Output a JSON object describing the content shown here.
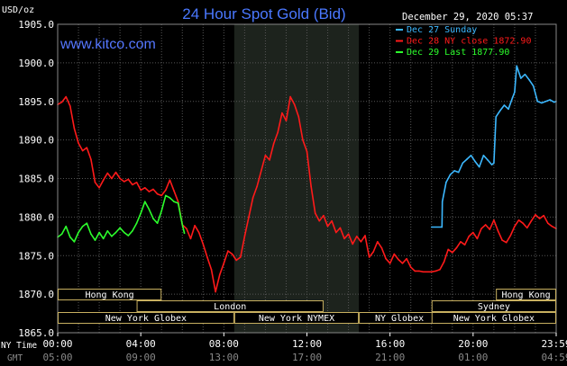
{
  "chart_data": {
    "type": "line",
    "title": "24 Hour Spot Gold (Bid)",
    "website": "www.kitco.com",
    "ylabel": "USD/oz",
    "timestamp": "December 29, 2020 05:37",
    "ylim": [
      1865.0,
      1905.0
    ],
    "yticks": [
      "1905.0",
      "1900.0",
      "1895.0",
      "1890.0",
      "1885.0",
      "1880.0",
      "1875.0",
      "1870.0",
      "1865.0"
    ],
    "xlim": [
      0,
      24
    ],
    "xticks": [
      {
        "x": 0,
        "ny": "00:00",
        "gmt": "05:00"
      },
      {
        "x": 4,
        "ny": "04:00",
        "gmt": "09:00"
      },
      {
        "x": 8,
        "ny": "08:00",
        "gmt": "13:00"
      },
      {
        "x": 12,
        "ny": "12:00",
        "gmt": "17:00"
      },
      {
        "x": 16,
        "ny": "16:00",
        "gmt": "21:00"
      },
      {
        "x": 20,
        "ny": "20:00",
        "gmt": "01:00"
      },
      {
        "x": 24,
        "ny": "23:59",
        "gmt": "04:59"
      }
    ],
    "xaxis_labels": {
      "ny": "NY Time",
      "gmt": "GMT"
    },
    "shaded_hours": [
      8.5,
      14.5
    ],
    "grid": true,
    "legend_position": "top-right",
    "legend": [
      {
        "label": "Dec 27 Sunday",
        "color": "#3cb8ff"
      },
      {
        "label": "Dec 28 NY close 1872.90",
        "color": "#ff1a1a"
      },
      {
        "label": "Dec 29 Last 1877.90",
        "color": "#2cff2c"
      }
    ],
    "series": [
      {
        "name": "Dec 28",
        "color": "#ff1a1a",
        "points": [
          [
            0.0,
            1894.6
          ],
          [
            0.2,
            1894.9
          ],
          [
            0.4,
            1895.6
          ],
          [
            0.6,
            1894.4
          ],
          [
            0.8,
            1891.5
          ],
          [
            1.0,
            1889.6
          ],
          [
            1.2,
            1888.6
          ],
          [
            1.4,
            1889.0
          ],
          [
            1.6,
            1887.5
          ],
          [
            1.8,
            1884.5
          ],
          [
            2.0,
            1883.8
          ],
          [
            2.2,
            1884.8
          ],
          [
            2.4,
            1885.7
          ],
          [
            2.6,
            1885.0
          ],
          [
            2.8,
            1885.8
          ],
          [
            3.0,
            1885.0
          ],
          [
            3.2,
            1884.6
          ],
          [
            3.4,
            1884.9
          ],
          [
            3.6,
            1884.2
          ],
          [
            3.8,
            1884.5
          ],
          [
            4.0,
            1883.5
          ],
          [
            4.2,
            1883.8
          ],
          [
            4.4,
            1883.3
          ],
          [
            4.6,
            1883.6
          ],
          [
            4.8,
            1883.0
          ],
          [
            5.0,
            1882.8
          ],
          [
            5.2,
            1883.5
          ],
          [
            5.4,
            1884.8
          ],
          [
            5.6,
            1883.4
          ],
          [
            5.8,
            1882.0
          ],
          [
            6.0,
            1879.0
          ],
          [
            6.2,
            1878.5
          ],
          [
            6.4,
            1877.2
          ],
          [
            6.6,
            1878.9
          ],
          [
            6.8,
            1878.0
          ],
          [
            7.0,
            1876.5
          ],
          [
            7.2,
            1874.8
          ],
          [
            7.4,
            1873.2
          ],
          [
            7.6,
            1870.3
          ],
          [
            7.8,
            1872.5
          ],
          [
            8.0,
            1874.0
          ],
          [
            8.2,
            1875.6
          ],
          [
            8.4,
            1875.2
          ],
          [
            8.6,
            1874.4
          ],
          [
            8.8,
            1874.8
          ],
          [
            9.0,
            1877.5
          ],
          [
            9.2,
            1880.0
          ],
          [
            9.4,
            1882.5
          ],
          [
            9.6,
            1884.0
          ],
          [
            9.8,
            1886.0
          ],
          [
            10.0,
            1888.0
          ],
          [
            10.2,
            1887.4
          ],
          [
            10.4,
            1889.5
          ],
          [
            10.6,
            1891.0
          ],
          [
            10.8,
            1893.5
          ],
          [
            11.0,
            1892.5
          ],
          [
            11.2,
            1895.6
          ],
          [
            11.4,
            1894.6
          ],
          [
            11.6,
            1893.0
          ],
          [
            11.8,
            1890.0
          ],
          [
            12.0,
            1888.5
          ],
          [
            12.2,
            1884.0
          ],
          [
            12.4,
            1880.5
          ],
          [
            12.6,
            1879.5
          ],
          [
            12.8,
            1880.2
          ],
          [
            13.0,
            1878.8
          ],
          [
            13.2,
            1879.5
          ],
          [
            13.4,
            1878.0
          ],
          [
            13.6,
            1878.6
          ],
          [
            13.8,
            1877.2
          ],
          [
            14.0,
            1877.8
          ],
          [
            14.2,
            1876.5
          ],
          [
            14.4,
            1877.5
          ],
          [
            14.6,
            1876.8
          ],
          [
            14.8,
            1877.6
          ],
          [
            15.0,
            1874.8
          ],
          [
            15.2,
            1875.5
          ],
          [
            15.4,
            1876.8
          ],
          [
            15.6,
            1876.0
          ],
          [
            15.8,
            1874.6
          ],
          [
            16.0,
            1874.0
          ],
          [
            16.2,
            1875.2
          ],
          [
            16.4,
            1874.5
          ],
          [
            16.6,
            1874.0
          ],
          [
            16.8,
            1874.6
          ],
          [
            17.0,
            1873.5
          ],
          [
            17.2,
            1873.0
          ],
          [
            17.4,
            1873.0
          ],
          [
            17.6,
            1872.9
          ],
          [
            17.8,
            1872.9
          ],
          [
            18.0,
            1872.9
          ],
          [
            18.2,
            1873.0
          ],
          [
            18.4,
            1873.2
          ],
          [
            18.6,
            1874.2
          ],
          [
            18.8,
            1875.8
          ],
          [
            19.0,
            1875.4
          ],
          [
            19.2,
            1876.0
          ],
          [
            19.4,
            1876.8
          ],
          [
            19.6,
            1876.4
          ],
          [
            19.8,
            1877.5
          ],
          [
            20.0,
            1878.0
          ],
          [
            20.2,
            1877.2
          ],
          [
            20.4,
            1878.5
          ],
          [
            20.6,
            1879.0
          ],
          [
            20.8,
            1878.4
          ],
          [
            21.0,
            1879.6
          ],
          [
            21.2,
            1878.2
          ],
          [
            21.4,
            1877.0
          ],
          [
            21.6,
            1876.7
          ],
          [
            21.8,
            1877.6
          ],
          [
            22.0,
            1878.8
          ],
          [
            22.2,
            1879.6
          ],
          [
            22.4,
            1879.2
          ],
          [
            22.6,
            1878.6
          ],
          [
            22.8,
            1879.5
          ],
          [
            23.0,
            1880.3
          ],
          [
            23.2,
            1879.8
          ],
          [
            23.4,
            1880.2
          ],
          [
            23.6,
            1879.2
          ],
          [
            23.8,
            1878.8
          ],
          [
            24.0,
            1878.5
          ]
        ]
      },
      {
        "name": "Dec 29",
        "color": "#2cff2c",
        "points": [
          [
            0.0,
            1877.4
          ],
          [
            0.2,
            1877.8
          ],
          [
            0.4,
            1878.8
          ],
          [
            0.6,
            1877.4
          ],
          [
            0.8,
            1876.8
          ],
          [
            1.0,
            1878.0
          ],
          [
            1.2,
            1878.8
          ],
          [
            1.4,
            1879.2
          ],
          [
            1.6,
            1877.8
          ],
          [
            1.8,
            1877.0
          ],
          [
            2.0,
            1878.0
          ],
          [
            2.2,
            1877.2
          ],
          [
            2.4,
            1878.2
          ],
          [
            2.6,
            1877.5
          ],
          [
            2.8,
            1878.0
          ],
          [
            3.0,
            1878.6
          ],
          [
            3.2,
            1878.0
          ],
          [
            3.4,
            1877.6
          ],
          [
            3.6,
            1878.2
          ],
          [
            3.8,
            1879.2
          ],
          [
            4.0,
            1880.5
          ],
          [
            4.2,
            1882.0
          ],
          [
            4.4,
            1881.0
          ],
          [
            4.6,
            1879.8
          ],
          [
            4.8,
            1879.2
          ],
          [
            5.0,
            1880.8
          ],
          [
            5.2,
            1882.8
          ],
          [
            5.4,
            1882.5
          ],
          [
            5.6,
            1882.0
          ],
          [
            5.8,
            1881.8
          ],
          [
            6.0,
            1879.0
          ],
          [
            6.1,
            1877.9
          ]
        ]
      },
      {
        "name": "Dec 27",
        "color": "#3cb8ff",
        "points": [
          [
            18.0,
            1878.7
          ],
          [
            18.5,
            1878.7
          ],
          [
            18.52,
            1882.0
          ],
          [
            18.7,
            1884.5
          ],
          [
            18.9,
            1885.5
          ],
          [
            19.1,
            1886.0
          ],
          [
            19.3,
            1885.8
          ],
          [
            19.5,
            1887.0
          ],
          [
            19.7,
            1887.5
          ],
          [
            19.9,
            1888.0
          ],
          [
            20.1,
            1887.2
          ],
          [
            20.3,
            1886.5
          ],
          [
            20.5,
            1888.0
          ],
          [
            20.7,
            1887.4
          ],
          [
            20.9,
            1886.8
          ],
          [
            21.0,
            1887.0
          ],
          [
            21.1,
            1893.0
          ],
          [
            21.3,
            1893.8
          ],
          [
            21.5,
            1894.5
          ],
          [
            21.7,
            1894.0
          ],
          [
            21.9,
            1895.5
          ],
          [
            22.0,
            1896.2
          ],
          [
            22.1,
            1899.6
          ],
          [
            22.3,
            1898.0
          ],
          [
            22.5,
            1898.5
          ],
          [
            22.7,
            1897.8
          ],
          [
            22.9,
            1897.0
          ],
          [
            23.1,
            1895.0
          ],
          [
            23.3,
            1894.8
          ],
          [
            23.5,
            1895.0
          ],
          [
            23.7,
            1895.2
          ],
          [
            23.9,
            1894.9
          ],
          [
            24.0,
            1895.0
          ]
        ]
      }
    ],
    "sessions": [
      {
        "label": "Hong Kong",
        "row": 0,
        "segments": [
          [
            0,
            5
          ]
        ]
      },
      {
        "label": "Hong Kong",
        "row": 0,
        "segments": [
          [
            21.1,
            24.0
          ]
        ]
      },
      {
        "label": "London",
        "row": 1,
        "segments": [
          [
            3.8,
            12.8
          ]
        ]
      },
      {
        "label": "Sydney",
        "row": 1,
        "segments": [
          [
            18.0,
            24.0
          ]
        ]
      },
      {
        "label": "New York Globex",
        "row": 2,
        "segments": [
          [
            0,
            8.5
          ]
        ]
      },
      {
        "label": "New York NYMEX",
        "row": 2,
        "segments": [
          [
            8.5,
            14.5
          ]
        ]
      },
      {
        "label": "NY Globex",
        "row": 2,
        "segments": [
          [
            14.5,
            18.4
          ]
        ]
      },
      {
        "label": "New York Globex",
        "row": 2,
        "segments": [
          [
            18.0,
            24.0
          ]
        ]
      }
    ]
  }
}
